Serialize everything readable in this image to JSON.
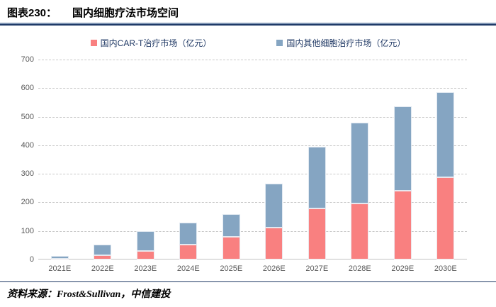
{
  "header": {
    "fig_label": "图表230：",
    "title": "国内细胞疗法市场空间"
  },
  "chart_data": {
    "type": "bar",
    "stacked": true,
    "title": "国内细胞疗法市场空间",
    "categories": [
      "2021E",
      "2022E",
      "2023E",
      "2024E",
      "2025E",
      "2026E",
      "2027E",
      "2028E",
      "2029E",
      "2030E"
    ],
    "series": [
      {
        "name": "国内CAR-T治疗市场（亿元）",
        "color": "#f98080",
        "values": [
          2,
          15,
          30,
          53,
          80,
          112,
          180,
          196,
          242,
          288
        ]
      },
      {
        "name": "国内其他细胞治疗市场（亿元）",
        "color": "#85a5c2",
        "values": [
          11,
          38,
          70,
          77,
          80,
          153,
          215,
          282,
          295,
          297
        ]
      }
    ],
    "totals": [
      13,
      53,
      100,
      130,
      160,
      265,
      395,
      478,
      537,
      585
    ],
    "xlabel": "",
    "ylabel": "",
    "ylim": [
      0,
      700
    ],
    "ytick_step": 100,
    "grid": "horizontal-dashed",
    "legend_position": "top-center"
  },
  "footer": {
    "source_label": "资料来源：",
    "source_text": "Frost&Sullivan，中信建投"
  },
  "colors": {
    "title_rule_top": "#8096b4",
    "title_rule_bottom": "#1f3a68",
    "footer_rule": "#1f3864",
    "legend_text": "#1f3864",
    "axis_text": "#595959",
    "gridline": "#c8c8c8",
    "car_t_bar": "#f98080",
    "other_cell_bar": "#85a5c2"
  }
}
